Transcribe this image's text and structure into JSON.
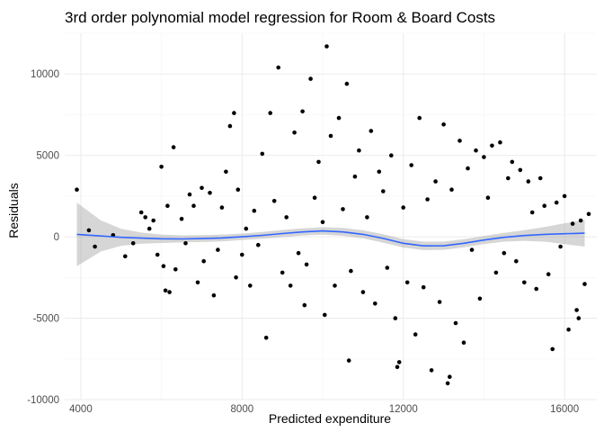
{
  "chart_data": {
    "type": "scatter",
    "title": "3rd order polynomial model regression for Room & Board Costs",
    "xlabel": "Predicted expenditure",
    "ylabel": "Residuals",
    "xlim": [
      3600,
      16800
    ],
    "ylim": [
      -10000,
      12500
    ],
    "x_ticks": [
      4000,
      8000,
      12000,
      16000
    ],
    "y_ticks": [
      -10000,
      -5000,
      0,
      5000,
      10000
    ],
    "x_tick_labels": [
      "4000",
      "8000",
      "12000",
      "16000"
    ],
    "y_tick_labels": [
      "-10000",
      "-5000",
      "0",
      "5000",
      "10000"
    ],
    "grid": true,
    "legend": "none",
    "point_color": "#000000",
    "smooth_line_color": "#3366FF",
    "band_color": "#999999",
    "smooth": {
      "x": [
        3900,
        4500,
        5000,
        5500,
        6000,
        6500,
        7000,
        7500,
        8000,
        8500,
        9000,
        9500,
        10000,
        10500,
        11000,
        11500,
        12000,
        12500,
        13000,
        13500,
        14000,
        14500,
        15000,
        15500,
        16000,
        16500
      ],
      "y": [
        150,
        50,
        -30,
        -80,
        -120,
        -130,
        -110,
        -70,
        0,
        90,
        200,
        300,
        360,
        300,
        150,
        -100,
        -400,
        -560,
        -550,
        -400,
        -200,
        -30,
        80,
        150,
        190,
        220
      ],
      "lower": [
        -1800,
        -900,
        -550,
        -420,
        -380,
        -350,
        -320,
        -280,
        -200,
        -120,
        -20,
        80,
        130,
        60,
        -100,
        -360,
        -660,
        -820,
        -800,
        -650,
        -450,
        -300,
        -250,
        -300,
        -450,
        -600
      ],
      "upper": [
        2100,
        1000,
        490,
        260,
        140,
        90,
        100,
        140,
        200,
        300,
        420,
        520,
        590,
        540,
        400,
        160,
        -140,
        -300,
        -300,
        -150,
        50,
        240,
        410,
        600,
        830,
        1040
      ]
    },
    "points": [
      [
        3900,
        2900
      ],
      [
        4200,
        400
      ],
      [
        4350,
        -600
      ],
      [
        4800,
        100
      ],
      [
        5100,
        -1200
      ],
      [
        5300,
        -400
      ],
      [
        5500,
        1500
      ],
      [
        5600,
        1200
      ],
      [
        5700,
        500
      ],
      [
        5800,
        1000
      ],
      [
        5900,
        -1100
      ],
      [
        6000,
        4300
      ],
      [
        6050,
        -1800
      ],
      [
        6100,
        -3300
      ],
      [
        6150,
        1900
      ],
      [
        6200,
        -3400
      ],
      [
        6300,
        5500
      ],
      [
        6350,
        -2000
      ],
      [
        6500,
        1100
      ],
      [
        6600,
        -400
      ],
      [
        6700,
        2600
      ],
      [
        6800,
        1900
      ],
      [
        6900,
        -2800
      ],
      [
        7000,
        3000
      ],
      [
        7050,
        -1500
      ],
      [
        7200,
        2700
      ],
      [
        7300,
        -3600
      ],
      [
        7400,
        -800
      ],
      [
        7500,
        1800
      ],
      [
        7600,
        4000
      ],
      [
        7700,
        6800
      ],
      [
        7800,
        7600
      ],
      [
        7850,
        -2500
      ],
      [
        7900,
        2900
      ],
      [
        8000,
        -1100
      ],
      [
        8100,
        500
      ],
      [
        8200,
        -3000
      ],
      [
        8300,
        1600
      ],
      [
        8400,
        -500
      ],
      [
        8500,
        5100
      ],
      [
        8600,
        -6200
      ],
      [
        8700,
        7600
      ],
      [
        8800,
        2200
      ],
      [
        8900,
        10400
      ],
      [
        9000,
        -2200
      ],
      [
        9100,
        1200
      ],
      [
        9200,
        -3000
      ],
      [
        9300,
        6400
      ],
      [
        9400,
        -1000
      ],
      [
        9500,
        7700
      ],
      [
        9550,
        -4200
      ],
      [
        9600,
        -1700
      ],
      [
        9700,
        9700
      ],
      [
        9800,
        2400
      ],
      [
        9900,
        4600
      ],
      [
        10000,
        900
      ],
      [
        10050,
        -4800
      ],
      [
        10100,
        11700
      ],
      [
        10200,
        6200
      ],
      [
        10300,
        -3000
      ],
      [
        10400,
        7300
      ],
      [
        10500,
        1700
      ],
      [
        10600,
        9400
      ],
      [
        10650,
        -7600
      ],
      [
        10700,
        -2100
      ],
      [
        10800,
        3700
      ],
      [
        10900,
        5300
      ],
      [
        11000,
        -3400
      ],
      [
        11100,
        1200
      ],
      [
        11200,
        6500
      ],
      [
        11300,
        -4100
      ],
      [
        11400,
        4000
      ],
      [
        11500,
        2800
      ],
      [
        11600,
        -1900
      ],
      [
        11700,
        5000
      ],
      [
        11800,
        -5000
      ],
      [
        11850,
        -8000
      ],
      [
        11900,
        -7700
      ],
      [
        12000,
        1800
      ],
      [
        12100,
        -2800
      ],
      [
        12200,
        4400
      ],
      [
        12300,
        -6000
      ],
      [
        12400,
        7300
      ],
      [
        12500,
        -3100
      ],
      [
        12600,
        2300
      ],
      [
        12700,
        -8200
      ],
      [
        12800,
        3400
      ],
      [
        12900,
        -4000
      ],
      [
        13000,
        6900
      ],
      [
        13100,
        -9000
      ],
      [
        13150,
        -8600
      ],
      [
        13200,
        2900
      ],
      [
        13300,
        -5300
      ],
      [
        13400,
        5900
      ],
      [
        13500,
        -6500
      ],
      [
        13600,
        4200
      ],
      [
        13700,
        -800
      ],
      [
        13800,
        5300
      ],
      [
        13900,
        -3800
      ],
      [
        14000,
        4900
      ],
      [
        14100,
        2400
      ],
      [
        14200,
        5600
      ],
      [
        14300,
        -2200
      ],
      [
        14400,
        5800
      ],
      [
        14500,
        -1000
      ],
      [
        14600,
        3600
      ],
      [
        14700,
        4600
      ],
      [
        14800,
        -1500
      ],
      [
        14900,
        4100
      ],
      [
        15000,
        -2800
      ],
      [
        15100,
        3400
      ],
      [
        15200,
        1500
      ],
      [
        15300,
        -3200
      ],
      [
        15400,
        3600
      ],
      [
        15500,
        1900
      ],
      [
        15600,
        -2300
      ],
      [
        15700,
        -6900
      ],
      [
        15800,
        2100
      ],
      [
        15900,
        -600
      ],
      [
        16000,
        2500
      ],
      [
        16100,
        -5700
      ],
      [
        16200,
        800
      ],
      [
        16300,
        -4500
      ],
      [
        16350,
        -5000
      ],
      [
        16400,
        1000
      ],
      [
        16500,
        -2900
      ],
      [
        16600,
        1400
      ]
    ]
  }
}
